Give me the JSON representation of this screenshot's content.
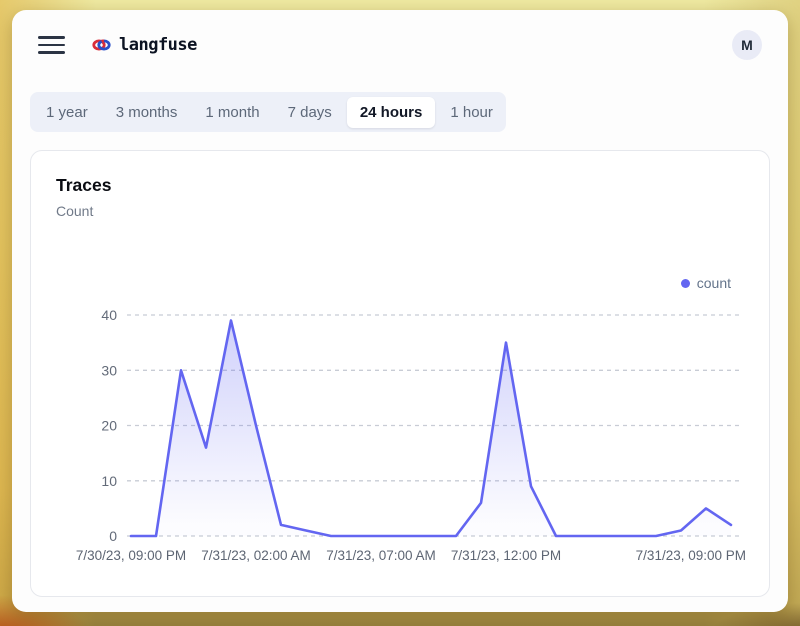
{
  "header": {
    "brand": "langfuse",
    "avatar_initial": "M"
  },
  "tabs": {
    "items": [
      {
        "label": "1 year",
        "selected": false
      },
      {
        "label": "3 months",
        "selected": false
      },
      {
        "label": "1 month",
        "selected": false
      },
      {
        "label": "7 days",
        "selected": false
      },
      {
        "label": "24 hours",
        "selected": true
      },
      {
        "label": "1 hour",
        "selected": false
      }
    ]
  },
  "card": {
    "title": "Traces",
    "subtitle": "Count"
  },
  "colors": {
    "accent": "#6366f1",
    "gridline": "#c8ccd5",
    "tab_bar_bg": "#edf0f8",
    "card_border": "#e6e8ed"
  },
  "chart_data": {
    "type": "area",
    "title": "Traces",
    "ylabel": "Count",
    "grid": "horizontal-dashed",
    "legend_position": "top-right",
    "legend": [
      {
        "name": "count",
        "color": "#6366f1"
      }
    ],
    "ylim": [
      0,
      40
    ],
    "yticks": [
      0,
      10,
      20,
      30,
      40
    ],
    "x": [
      "7/30/23, 09:00 PM",
      "7/30/23, 10:00 PM",
      "7/30/23, 11:00 PM",
      "7/31/23, 12:00 AM",
      "7/31/23, 01:00 AM",
      "7/31/23, 02:00 AM",
      "7/31/23, 03:00 AM",
      "7/31/23, 04:00 AM",
      "7/31/23, 05:00 AM",
      "7/31/23, 06:00 AM",
      "7/31/23, 07:00 AM",
      "7/31/23, 08:00 AM",
      "7/31/23, 09:00 AM",
      "7/31/23, 10:00 AM",
      "7/31/23, 11:00 AM",
      "7/31/23, 12:00 PM",
      "7/31/23, 01:00 PM",
      "7/31/23, 02:00 PM",
      "7/31/23, 03:00 PM",
      "7/31/23, 04:00 PM",
      "7/31/23, 05:00 PM",
      "7/31/23, 06:00 PM",
      "7/31/23, 07:00 PM",
      "7/31/23, 08:00 PM",
      "7/31/23, 09:00 PM"
    ],
    "values": [
      0,
      0,
      30,
      16,
      39,
      20,
      2,
      1,
      0,
      0,
      0,
      0,
      0,
      0,
      6,
      35,
      9,
      0,
      0,
      0,
      0,
      0,
      1,
      5,
      2
    ],
    "xticks": [
      {
        "label": "7/30/23, 09:00 PM",
        "index": 0
      },
      {
        "label": "7/31/23, 02:00 AM",
        "index": 5
      },
      {
        "label": "7/31/23, 07:00 AM",
        "index": 10
      },
      {
        "label": "7/31/23, 12:00 PM",
        "index": 15
      },
      {
        "label": "7/31/23, 09:00 PM",
        "index": 24,
        "anchor": "end"
      }
    ]
  }
}
